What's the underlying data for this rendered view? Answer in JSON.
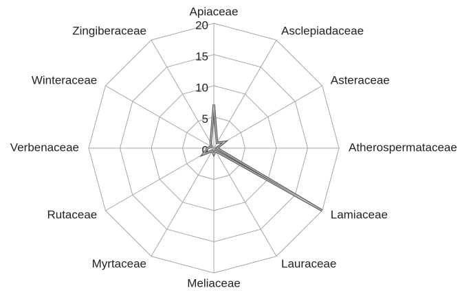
{
  "chart_data": {
    "type": "radar",
    "categories": [
      "Apiaceae",
      "Asclepiadaceae",
      "Asteraceae",
      "Atherospermataceae",
      "Lamiaceae",
      "Lauraceae",
      "Meliaceae",
      "Myrtaceae",
      "Rutaceae",
      "Verbenaceae",
      "Winteraceae",
      "Zingiberaceae"
    ],
    "values": [
      7,
      1,
      2,
      0.5,
      20,
      0.5,
      1,
      0.5,
      2,
      1,
      0.5,
      1
    ],
    "color": "#595959",
    "ylim": [
      0,
      20
    ],
    "yticks": [
      0,
      5,
      10,
      15,
      20
    ],
    "grid": true
  }
}
